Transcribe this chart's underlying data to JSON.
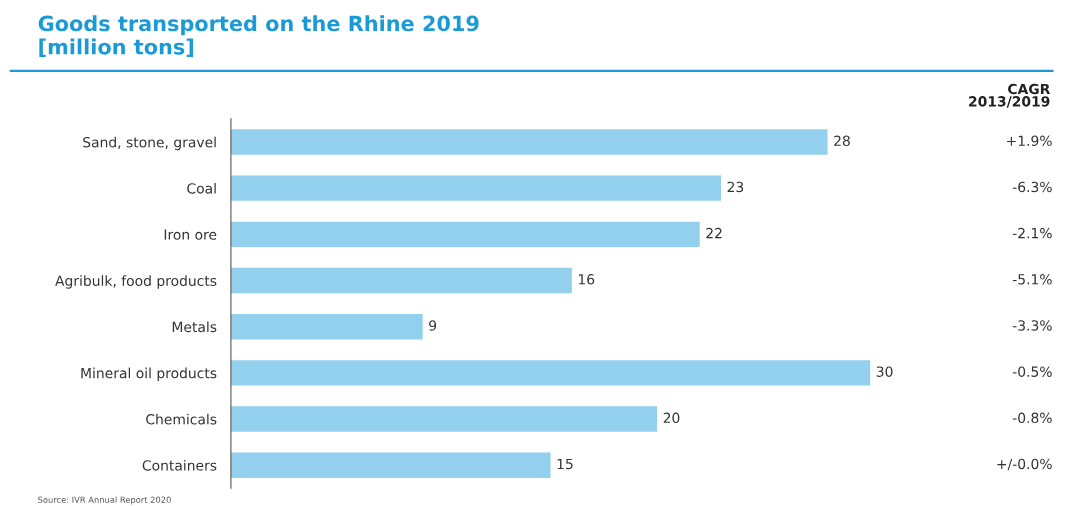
{
  "chart_data": {
    "type": "bar",
    "orientation": "horizontal",
    "title": "Goods transported on the Rhine 2019\n[million tons]",
    "categories": [
      "Sand, stone, gravel",
      "Coal",
      "Iron ore",
      "Agribulk, food products",
      "Metals",
      "Mineral oil products",
      "Chemicals",
      "Containers"
    ],
    "values": [
      28,
      23,
      22,
      16,
      9,
      30,
      20,
      15
    ],
    "color": "#92d0ee",
    "data_labels": true,
    "annotations": [
      "CAGR\n2013/2019",
      "+1.9%",
      "-6.3%",
      "-2.1%",
      "-5.1%",
      "-3.3%",
      "-0.5%",
      "-0.8%",
      "+/-0.0%",
      "Source: IVR Annual Report 2020"
    ]
  }
}
